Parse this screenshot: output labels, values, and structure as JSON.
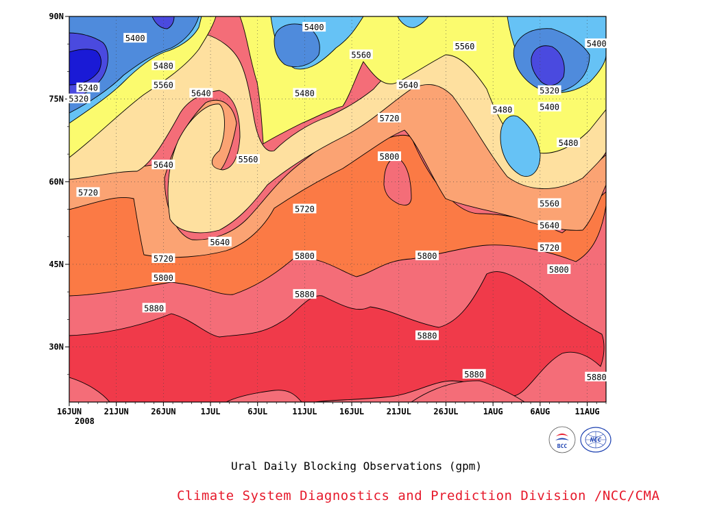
{
  "chart_data": {
    "type": "heatmap",
    "title": "Ural Daily Blocking Observations (gpm)",
    "x_ticks": [
      "16JUN\n2008",
      "21JUN",
      "26JUN",
      "1JUL",
      "6JUL",
      "11JUL",
      "16JUL",
      "21JUL",
      "26JUL",
      "1AUG",
      "6AUG",
      "11AUG"
    ],
    "y_ticks": [
      "30N",
      "45N",
      "60N",
      "75N",
      "90N"
    ],
    "y_range_deg": [
      20,
      90
    ],
    "x_range": [
      "2008-06-16",
      "2008-08-12"
    ],
    "field": "500 hPa geopotential height (gpm)",
    "contour_interval_gpm": 80,
    "contour_levels": [
      5240,
      5320,
      5400,
      5480,
      5560,
      5640,
      5720,
      5800,
      5880
    ],
    "fill_colors": {
      "below_5240": "#1a1ad6",
      "5240_5320": "#4a4adf",
      "5320_5400": "#4f8bdc",
      "5400_5480": "#66c2f5",
      "5480_5560": "#fbfb6e",
      "5560_5640": "#fee09f",
      "5640_5720": "#fba373",
      "5720_5800": "#fb7a45",
      "5800_5880": "#f46d78",
      "above_5880": "#f03a4a"
    },
    "contour_labels": [
      {
        "value": "5400",
        "date": "2008-06-23",
        "lat": 86
      },
      {
        "value": "5480",
        "date": "2008-06-26",
        "lat": 81
      },
      {
        "value": "5560",
        "date": "2008-06-26",
        "lat": 77.5
      },
      {
        "value": "5240",
        "date": "2008-06-18",
        "lat": 77
      },
      {
        "value": "5320",
        "date": "2008-06-17",
        "lat": 75
      },
      {
        "value": "5640",
        "date": "2008-06-30",
        "lat": 76
      },
      {
        "value": "5400",
        "date": "2008-07-12",
        "lat": 88
      },
      {
        "value": "5560",
        "date": "2008-07-17",
        "lat": 83
      },
      {
        "value": "5560",
        "date": "2008-07-28",
        "lat": 84.5
      },
      {
        "value": "5480",
        "date": "2008-07-11",
        "lat": 76
      },
      {
        "value": "5640",
        "date": "2008-07-22",
        "lat": 77.5
      },
      {
        "value": "5400",
        "date": "2008-08-11",
        "lat": 85
      },
      {
        "value": "5320",
        "date": "2008-08-06",
        "lat": 76.5
      },
      {
        "value": "5400",
        "date": "2008-08-06",
        "lat": 73.5
      },
      {
        "value": "5480",
        "date": "2008-08-01",
        "lat": 73
      },
      {
        "value": "5480",
        "date": "2008-08-08",
        "lat": 67
      },
      {
        "value": "5720",
        "date": "2008-07-20",
        "lat": 71.5
      },
      {
        "value": "5560",
        "date": "2008-07-05",
        "lat": 64
      },
      {
        "value": "5640",
        "date": "2008-06-26",
        "lat": 63
      },
      {
        "value": "5800",
        "date": "2008-07-20",
        "lat": 64.5
      },
      {
        "value": "5720",
        "date": "2008-06-18",
        "lat": 58
      },
      {
        "value": "5560",
        "date": "2008-08-06",
        "lat": 56
      },
      {
        "value": "5640",
        "date": "2008-08-06",
        "lat": 52
      },
      {
        "value": "5720",
        "date": "2008-07-11",
        "lat": 55
      },
      {
        "value": "5720",
        "date": "2008-08-06",
        "lat": 48
      },
      {
        "value": "5640",
        "date": "2008-07-02",
        "lat": 49
      },
      {
        "value": "5720",
        "date": "2008-06-26",
        "lat": 46
      },
      {
        "value": "5800",
        "date": "2008-07-11",
        "lat": 46.5
      },
      {
        "value": "5800",
        "date": "2008-07-24",
        "lat": 46.5
      },
      {
        "value": "5800",
        "date": "2008-08-07",
        "lat": 44
      },
      {
        "value": "5800",
        "date": "2008-06-26",
        "lat": 42.5
      },
      {
        "value": "5880",
        "date": "2008-07-11",
        "lat": 39.5
      },
      {
        "value": "5880",
        "date": "2008-06-25",
        "lat": 37
      },
      {
        "value": "5880",
        "date": "2008-07-24",
        "lat": 32
      },
      {
        "value": "5880",
        "date": "2008-07-29",
        "lat": 25
      },
      {
        "value": "5880",
        "date": "2008-08-11",
        "lat": 24.5
      }
    ]
  },
  "credit": "Climate System Diagnostics and Prediction Division /NCC/CMA",
  "logos": {
    "bcc": {
      "text": "BCC"
    },
    "ncc": {
      "text": "NCC"
    }
  }
}
